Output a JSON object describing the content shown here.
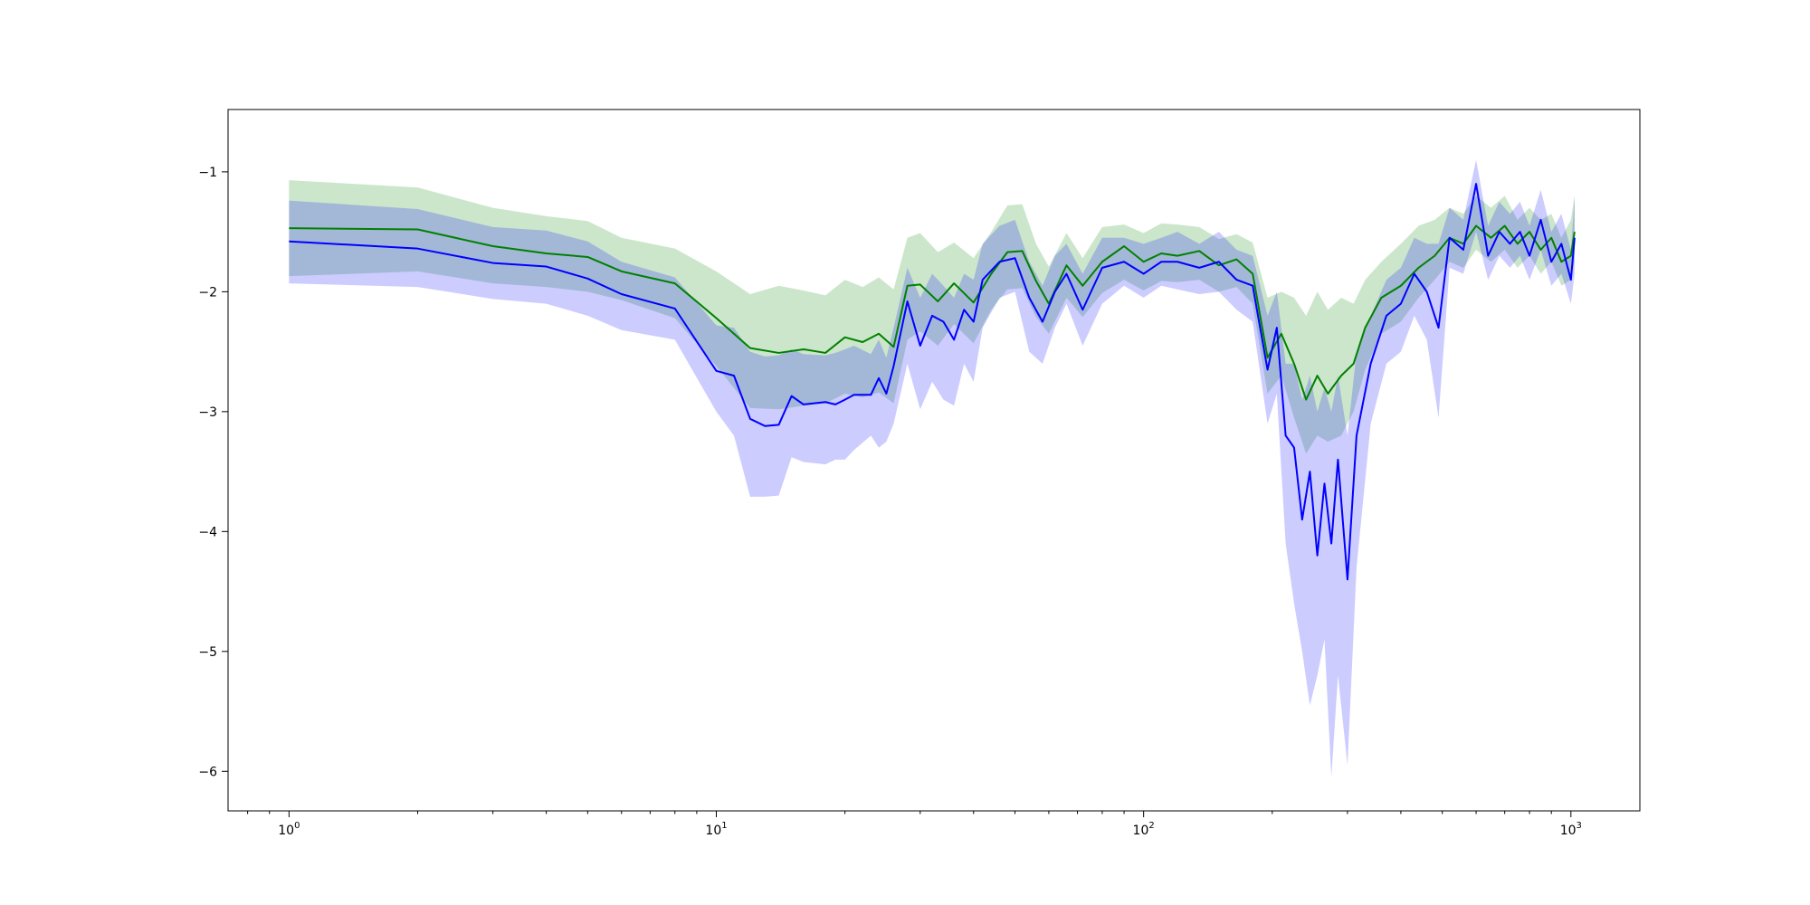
{
  "chart_data": {
    "type": "line",
    "title": "",
    "xlabel": "",
    "ylabel": "",
    "x_scale": "log",
    "xlim": [
      0.72,
      1450
    ],
    "ylim": [
      -6.33,
      -0.48
    ],
    "x_ticks": [
      {
        "value": 1,
        "base": "10",
        "exp": "0"
      },
      {
        "value": 10,
        "base": "10",
        "exp": "1"
      },
      {
        "value": 100,
        "base": "10",
        "exp": "2"
      },
      {
        "value": 1000,
        "base": "10",
        "exp": "3"
      }
    ],
    "y_ticks": [
      {
        "value": -1,
        "label": "−1"
      },
      {
        "value": -2,
        "label": "−2"
      },
      {
        "value": -3,
        "label": "−3"
      },
      {
        "value": -4,
        "label": "−4"
      },
      {
        "value": -5,
        "label": "−5"
      },
      {
        "value": -6,
        "label": "−6"
      }
    ],
    "grid": false,
    "legend": "none",
    "series": [
      {
        "color": "#008000",
        "band_alpha": 0.2,
        "points": [
          [
            1,
            -1.47,
            -1.87,
            -1.07
          ],
          [
            2,
            -1.48,
            -1.83,
            -1.13
          ],
          [
            3,
            -1.62,
            -1.93,
            -1.3
          ],
          [
            4,
            -1.68,
            -1.96,
            -1.37
          ],
          [
            5,
            -1.71,
            -2.0,
            -1.41
          ],
          [
            6,
            -1.83,
            -2.07,
            -1.55
          ],
          [
            8,
            -1.93,
            -2.22,
            -1.64
          ],
          [
            10,
            -2.22,
            -2.62,
            -1.83
          ],
          [
            12,
            -2.47,
            -2.97,
            -2.02
          ],
          [
            14,
            -2.51,
            -2.98,
            -1.95
          ],
          [
            16,
            -2.48,
            -2.95,
            -1.99
          ],
          [
            18,
            -2.51,
            -2.93,
            -2.03
          ],
          [
            20,
            -2.38,
            -2.85,
            -1.9
          ],
          [
            22,
            -2.42,
            -2.88,
            -1.96
          ],
          [
            24,
            -2.35,
            -2.84,
            -1.88
          ],
          [
            26,
            -2.46,
            -2.93,
            -1.98
          ],
          [
            28,
            -1.95,
            -2.4,
            -1.55
          ],
          [
            30,
            -1.94,
            -2.33,
            -1.51
          ],
          [
            33,
            -2.08,
            -2.45,
            -1.67
          ],
          [
            36,
            -1.93,
            -2.27,
            -1.59
          ],
          [
            40,
            -2.09,
            -2.43,
            -1.72
          ],
          [
            44,
            -1.85,
            -2.15,
            -1.5
          ],
          [
            48,
            -1.67,
            -1.98,
            -1.28
          ],
          [
            52,
            -1.66,
            -1.97,
            -1.27
          ],
          [
            56,
            -1.91,
            -2.21,
            -1.6
          ],
          [
            60,
            -2.1,
            -2.35,
            -1.79
          ],
          [
            66,
            -1.78,
            -2.05,
            -1.51
          ],
          [
            72,
            -1.95,
            -2.21,
            -1.72
          ],
          [
            80,
            -1.75,
            -2.01,
            -1.46
          ],
          [
            90,
            -1.62,
            -1.9,
            -1.44
          ],
          [
            100,
            -1.75,
            -1.99,
            -1.51
          ],
          [
            110,
            -1.68,
            -1.91,
            -1.43
          ],
          [
            120,
            -1.7,
            -1.92,
            -1.44
          ],
          [
            135,
            -1.66,
            -1.9,
            -1.46
          ],
          [
            150,
            -1.78,
            -2.0,
            -1.56
          ],
          [
            165,
            -1.73,
            -1.96,
            -1.52
          ],
          [
            180,
            -1.85,
            -2.1,
            -1.59
          ],
          [
            195,
            -2.55,
            -2.85,
            -2.05
          ],
          [
            210,
            -2.35,
            -2.7,
            -2.0
          ],
          [
            225,
            -2.6,
            -3.05,
            -2.05
          ],
          [
            240,
            -2.9,
            -3.35,
            -2.2
          ],
          [
            255,
            -2.7,
            -3.2,
            -2.0
          ],
          [
            270,
            -2.85,
            -3.25,
            -2.15
          ],
          [
            290,
            -2.7,
            -3.2,
            -2.05
          ],
          [
            310,
            -2.6,
            -3.0,
            -2.1
          ],
          [
            330,
            -2.3,
            -2.65,
            -1.9
          ],
          [
            360,
            -2.05,
            -2.35,
            -1.75
          ],
          [
            400,
            -1.95,
            -2.25,
            -1.6
          ],
          [
            440,
            -1.8,
            -2.05,
            -1.45
          ],
          [
            480,
            -1.7,
            -1.9,
            -1.4
          ],
          [
            520,
            -1.55,
            -1.75,
            -1.3
          ],
          [
            560,
            -1.6,
            -1.8,
            -1.35
          ],
          [
            600,
            -1.45,
            -1.65,
            -1.2
          ],
          [
            650,
            -1.55,
            -1.75,
            -1.3
          ],
          [
            700,
            -1.45,
            -1.65,
            -1.2
          ],
          [
            750,
            -1.6,
            -1.8,
            -1.4
          ],
          [
            800,
            -1.5,
            -1.7,
            -1.3
          ],
          [
            850,
            -1.65,
            -1.85,
            -1.4
          ],
          [
            900,
            -1.55,
            -1.75,
            -1.35
          ],
          [
            950,
            -1.75,
            -1.95,
            -1.55
          ],
          [
            1000,
            -1.7,
            -1.9,
            -1.4
          ],
          [
            1020,
            -1.5,
            -1.75,
            -1.2
          ]
        ]
      },
      {
        "color": "#0000ff",
        "band_alpha": 0.2,
        "points": [
          [
            1,
            -1.58,
            -1.93,
            -1.24
          ],
          [
            2,
            -1.64,
            -1.96,
            -1.31
          ],
          [
            3,
            -1.76,
            -2.06,
            -1.46
          ],
          [
            4,
            -1.79,
            -2.1,
            -1.49
          ],
          [
            5,
            -1.89,
            -2.2,
            -1.58
          ],
          [
            6,
            -2.02,
            -2.32,
            -1.75
          ],
          [
            8,
            -2.14,
            -2.4,
            -1.88
          ],
          [
            10,
            -2.66,
            -3.0,
            -2.28
          ],
          [
            11,
            -2.7,
            -3.2,
            -2.3
          ],
          [
            12,
            -3.06,
            -3.71,
            -2.5
          ],
          [
            13,
            -3.12,
            -3.71,
            -2.54
          ],
          [
            14,
            -3.11,
            -3.7,
            -2.53
          ],
          [
            15,
            -2.87,
            -3.38,
            -2.48
          ],
          [
            16,
            -2.94,
            -3.42,
            -2.52
          ],
          [
            18,
            -2.92,
            -3.44,
            -2.53
          ],
          [
            19,
            -2.94,
            -3.4,
            -2.51
          ],
          [
            20,
            -2.9,
            -3.4,
            -2.48
          ],
          [
            21,
            -2.86,
            -3.32,
            -2.45
          ],
          [
            23,
            -2.86,
            -3.2,
            -2.52
          ],
          [
            24,
            -2.72,
            -3.3,
            -2.4
          ],
          [
            25,
            -2.85,
            -3.25,
            -2.55
          ],
          [
            26,
            -2.62,
            -3.1,
            -2.3
          ],
          [
            28,
            -2.08,
            -2.6,
            -1.8
          ],
          [
            30,
            -2.45,
            -2.98,
            -2.05
          ],
          [
            32,
            -2.2,
            -2.75,
            -1.85
          ],
          [
            34,
            -2.25,
            -2.9,
            -1.95
          ],
          [
            36,
            -2.4,
            -2.95,
            -2.05
          ],
          [
            38,
            -2.15,
            -2.6,
            -1.85
          ],
          [
            40,
            -2.25,
            -2.75,
            -1.9
          ],
          [
            42,
            -1.9,
            -2.3,
            -1.6
          ],
          [
            46,
            -1.75,
            -2.05,
            -1.45
          ],
          [
            50,
            -1.72,
            -2.0,
            -1.4
          ],
          [
            54,
            -2.05,
            -2.5,
            -1.75
          ],
          [
            58,
            -2.25,
            -2.6,
            -1.95
          ],
          [
            62,
            -2.0,
            -2.3,
            -1.7
          ],
          [
            66,
            -1.85,
            -2.1,
            -1.6
          ],
          [
            72,
            -2.15,
            -2.45,
            -1.85
          ],
          [
            80,
            -1.8,
            -2.1,
            -1.55
          ],
          [
            90,
            -1.75,
            -1.95,
            -1.55
          ],
          [
            100,
            -1.85,
            -2.05,
            -1.6
          ],
          [
            110,
            -1.75,
            -1.95,
            -1.55
          ],
          [
            120,
            -1.75,
            -1.98,
            -1.5
          ],
          [
            135,
            -1.8,
            -2.02,
            -1.6
          ],
          [
            150,
            -1.75,
            -2.0,
            -1.5
          ],
          [
            165,
            -1.9,
            -2.15,
            -1.65
          ],
          [
            180,
            -1.95,
            -2.25,
            -1.7
          ],
          [
            195,
            -2.65,
            -3.1,
            -2.2
          ],
          [
            205,
            -2.3,
            -2.85,
            -2.0
          ],
          [
            215,
            -3.2,
            -4.1,
            -2.6
          ],
          [
            225,
            -3.3,
            -4.6,
            -2.6
          ],
          [
            235,
            -3.9,
            -5.0,
            -2.9
          ],
          [
            245,
            -3.5,
            -5.45,
            -2.7
          ],
          [
            255,
            -4.2,
            -5.2,
            -3.0
          ],
          [
            265,
            -3.6,
            -4.9,
            -2.8
          ],
          [
            275,
            -4.1,
            -6.05,
            -3.0
          ],
          [
            285,
            -3.4,
            -5.2,
            -2.7
          ],
          [
            300,
            -4.4,
            -5.95,
            -3.2
          ],
          [
            315,
            -3.2,
            -4.3,
            -2.5
          ],
          [
            340,
            -2.6,
            -3.1,
            -2.2
          ],
          [
            370,
            -2.2,
            -2.6,
            -1.9
          ],
          [
            400,
            -2.1,
            -2.5,
            -1.8
          ],
          [
            430,
            -1.85,
            -2.2,
            -1.55
          ],
          [
            460,
            -2.0,
            -2.4,
            -1.6
          ],
          [
            490,
            -2.3,
            -3.05,
            -1.6
          ],
          [
            520,
            -1.55,
            -1.8,
            -1.3
          ],
          [
            560,
            -1.65,
            -1.85,
            -1.4
          ],
          [
            600,
            -1.1,
            -1.5,
            -0.9
          ],
          [
            640,
            -1.7,
            -1.9,
            -1.45
          ],
          [
            680,
            -1.5,
            -1.7,
            -1.25
          ],
          [
            720,
            -1.6,
            -1.8,
            -1.35
          ],
          [
            760,
            -1.5,
            -1.7,
            -1.25
          ],
          [
            800,
            -1.7,
            -1.9,
            -1.45
          ],
          [
            850,
            -1.4,
            -1.65,
            -1.15
          ],
          [
            900,
            -1.75,
            -1.95,
            -1.5
          ],
          [
            950,
            -1.6,
            -1.85,
            -1.35
          ],
          [
            1000,
            -1.9,
            -2.1,
            -1.65
          ],
          [
            1020,
            -1.55,
            -1.85,
            -1.2
          ]
        ]
      }
    ]
  }
}
